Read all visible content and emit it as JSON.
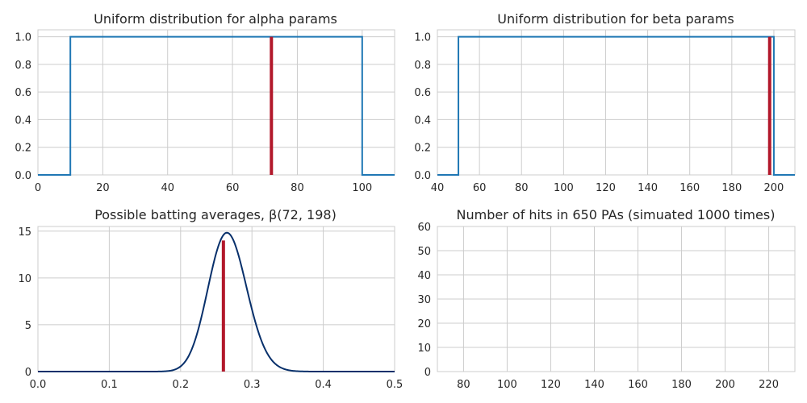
{
  "chart_data": [
    {
      "type": "line",
      "title": "Uniform distribution for alpha params",
      "xlim": [
        0,
        110
      ],
      "ylim": [
        0,
        1.05
      ],
      "xticks": [
        0,
        20,
        40,
        60,
        80,
        100
      ],
      "yticks": [
        0.0,
        0.2,
        0.4,
        0.6,
        0.8,
        1.0
      ],
      "xtick_labels": [
        "0",
        "20",
        "40",
        "60",
        "80",
        "100"
      ],
      "ytick_labels": [
        "0.0",
        "0.2",
        "0.4",
        "0.6",
        "0.8",
        "1.0"
      ],
      "grid": true,
      "series": [
        {
          "color": "#1f77b4",
          "x": [
            0,
            10,
            10,
            100,
            100,
            110
          ],
          "y": [
            0,
            0,
            1,
            1,
            0,
            0
          ]
        }
      ],
      "vlines": [
        {
          "x": 72,
          "ymin": 0,
          "ymax": 1.0,
          "color": "#b2182b"
        }
      ]
    },
    {
      "type": "line",
      "title": "Uniform distribution for beta params",
      "xlim": [
        40,
        210
      ],
      "ylim": [
        0,
        1.05
      ],
      "xticks": [
        40,
        60,
        80,
        100,
        120,
        140,
        160,
        180,
        200
      ],
      "yticks": [
        0.0,
        0.2,
        0.4,
        0.6,
        0.8,
        1.0
      ],
      "xtick_labels": [
        "40",
        "60",
        "80",
        "100",
        "120",
        "140",
        "160",
        "180",
        "200"
      ],
      "ytick_labels": [
        "0.0",
        "0.2",
        "0.4",
        "0.6",
        "0.8",
        "1.0"
      ],
      "grid": true,
      "series": [
        {
          "color": "#1f77b4",
          "x": [
            40,
            50,
            50,
            200,
            200,
            210
          ],
          "y": [
            0,
            0,
            1,
            1,
            0,
            0
          ]
        }
      ],
      "vlines": [
        {
          "x": 198,
          "ymin": 0,
          "ymax": 1.0,
          "color": "#b2182b"
        }
      ]
    },
    {
      "type": "line",
      "title": "Possible batting averages, β(72, 198)",
      "xlim": [
        0,
        0.5
      ],
      "ylim": [
        0,
        15.5
      ],
      "xticks": [
        0.0,
        0.1,
        0.2,
        0.3,
        0.4,
        0.5
      ],
      "yticks": [
        0,
        5,
        10,
        15
      ],
      "xtick_labels": [
        "0.0",
        "0.1",
        "0.2",
        "0.3",
        "0.4",
        "0.5"
      ],
      "ytick_labels": [
        "0",
        "5",
        "10",
        "15"
      ],
      "grid": true,
      "series": [
        {
          "color": "#08306b",
          "distribution": "beta",
          "alpha": 72,
          "beta": 198
        }
      ],
      "vlines": [
        {
          "x": 0.26,
          "ymin": 0,
          "ymax": 14.0,
          "color": "#b2182b"
        }
      ]
    },
    {
      "type": "bar",
      "title": "Number of hits in 650 PAs (simuated 1000 times)",
      "xlim": [
        68,
        232
      ],
      "ylim": [
        0,
        60
      ],
      "xticks": [
        80,
        100,
        120,
        140,
        160,
        180,
        200,
        220
      ],
      "yticks": [
        0,
        10,
        20,
        30,
        40,
        50,
        60
      ],
      "xtick_labels": [
        "80",
        "100",
        "120",
        "140",
        "160",
        "180",
        "200",
        "220"
      ],
      "ytick_labels": [
        "0",
        "10",
        "20",
        "30",
        "40",
        "50",
        "60"
      ],
      "grid": true,
      "series": []
    }
  ]
}
